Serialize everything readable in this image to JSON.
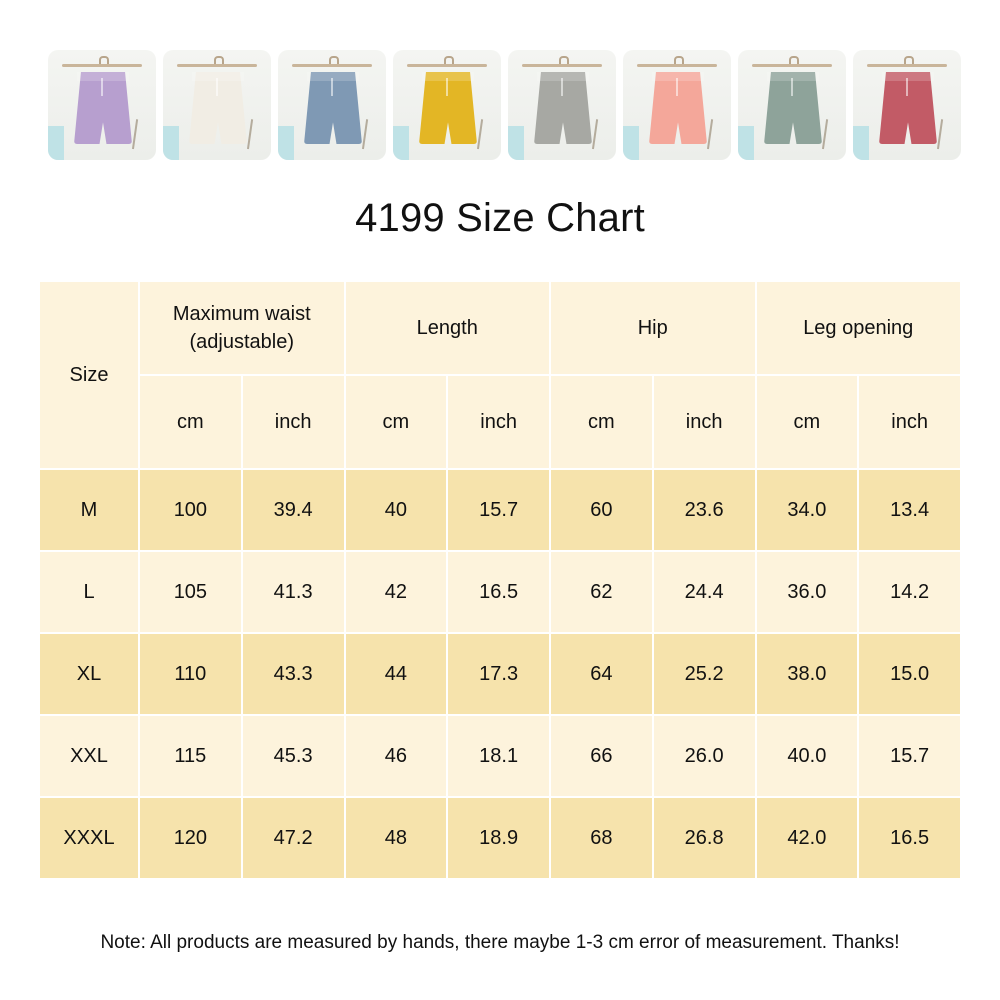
{
  "thumbnails": [
    {
      "name": "lilac-shorts",
      "color": "#b79fcf"
    },
    {
      "name": "white-shorts",
      "color": "#f1ede4"
    },
    {
      "name": "blue-shorts",
      "color": "#7f99b4"
    },
    {
      "name": "yellow-shorts",
      "color": "#e3b625"
    },
    {
      "name": "grey-shorts",
      "color": "#a7a8a3"
    },
    {
      "name": "pink-shorts",
      "color": "#f4a79a"
    },
    {
      "name": "sage-shorts",
      "color": "#8ea39a"
    },
    {
      "name": "rose-shorts",
      "color": "#c25b66"
    }
  ],
  "title": "4199 Size Chart",
  "table": {
    "size_header": "Size",
    "groups": [
      "Maximum waist\n(adjustable)",
      "Length",
      "Hip",
      "Leg opening"
    ],
    "units": [
      "cm",
      "inch",
      "cm",
      "inch",
      "cm",
      "inch",
      "cm",
      "inch"
    ],
    "rows": [
      {
        "size": "M",
        "values": [
          "100",
          "39.4",
          "40",
          "15.7",
          "60",
          "23.6",
          "34.0",
          "13.4"
        ]
      },
      {
        "size": "L",
        "values": [
          "105",
          "41.3",
          "42",
          "16.5",
          "62",
          "24.4",
          "36.0",
          "14.2"
        ]
      },
      {
        "size": "XL",
        "values": [
          "110",
          "43.3",
          "44",
          "17.3",
          "64",
          "25.2",
          "38.0",
          "15.0"
        ]
      },
      {
        "size": "XXL",
        "values": [
          "115",
          "45.3",
          "46",
          "18.1",
          "66",
          "26.0",
          "40.0",
          "15.7"
        ]
      },
      {
        "size": "XXXL",
        "values": [
          "120",
          "47.2",
          "48",
          "18.9",
          "68",
          "26.8",
          "42.0",
          "16.5"
        ]
      }
    ]
  },
  "note": "Note: All products are measured by hands, there maybe 1-3 cm error of measurement. Thanks!",
  "colors": {
    "header_bg": "#fdf3dc",
    "row_dark": "#f6e3ac",
    "row_light": "#fdf3dc"
  }
}
